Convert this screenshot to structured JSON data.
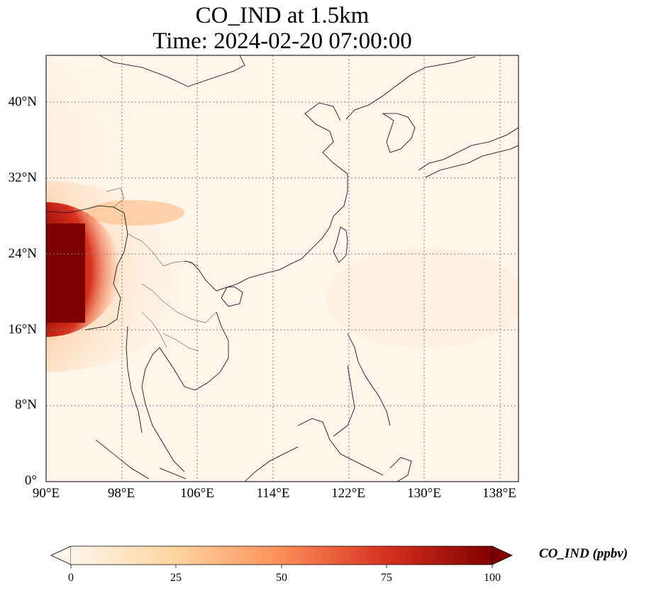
{
  "title": {
    "line1": "CO_IND at 1.5km",
    "line2": "Time: 2024-02-20 07:00:00"
  },
  "map": {
    "lon_range": [
      90,
      140
    ],
    "lat_range": [
      0,
      45
    ],
    "lat_ticks": [
      "0°",
      "8°N",
      "16°N",
      "24°N",
      "32°N",
      "40°N"
    ],
    "lon_ticks": [
      "90°E",
      "98°E",
      "106°E",
      "114°E",
      "122°E",
      "130°E",
      "138°E"
    ],
    "gridlines": true,
    "colormap": "OrRd",
    "colors": {
      "low": "#fff5eb",
      "mid": "#fdae6b",
      "high": "#7f0000",
      "coastline": "#000000",
      "grid": "#808080"
    }
  },
  "colorbar": {
    "label": "CO_IND (ppbv)",
    "min": 0,
    "max": 100,
    "ticks": [
      "0",
      "25",
      "50",
      "75",
      "100"
    ],
    "extend": "both"
  }
}
